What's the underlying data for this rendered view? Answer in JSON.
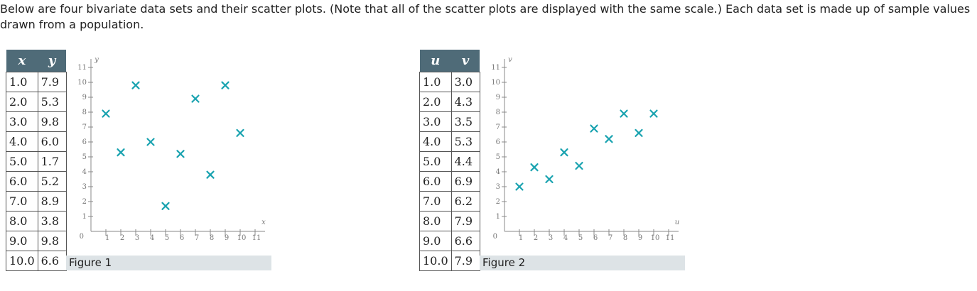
{
  "intro_text": "Below are four bivariate data sets and their scatter plots. (Note that all of the scatter plots are displayed with the same scale.) Each data set is made up of sample values drawn from a population.",
  "colors": {
    "header_bg": "#4f6b78",
    "marker": "#1aa3b0",
    "caption_bg": "#dde3e6"
  },
  "chart_data": [
    {
      "type": "scatter",
      "caption": "Figure 1",
      "xlabel": "x",
      "ylabel": "y",
      "xlim": [
        0,
        11
      ],
      "ylim": [
        0,
        11
      ],
      "xticks": [
        "1",
        "2",
        "3",
        "4",
        "5",
        "6",
        "7",
        "8",
        "9",
        "10",
        "11"
      ],
      "yticks": [
        "1",
        "2",
        "3",
        "4",
        "5",
        "6",
        "7",
        "8",
        "9",
        "10",
        "11"
      ],
      "origin_label": "0",
      "table_headers": [
        "x",
        "y"
      ],
      "x": [
        "1.0",
        "2.0",
        "3.0",
        "4.0",
        "5.0",
        "6.0",
        "7.0",
        "8.0",
        "9.0",
        "10.0"
      ],
      "y": [
        "7.9",
        "5.3",
        "9.8",
        "6.0",
        "1.7",
        "5.2",
        "8.9",
        "3.8",
        "9.8",
        "6.6"
      ]
    },
    {
      "type": "scatter",
      "caption": "Figure 2",
      "xlabel": "u",
      "ylabel": "v",
      "xlim": [
        0,
        11
      ],
      "ylim": [
        0,
        11
      ],
      "xticks": [
        "1",
        "2",
        "3",
        "4",
        "5",
        "6",
        "7",
        "8",
        "9",
        "10",
        "11"
      ],
      "yticks": [
        "1",
        "2",
        "3",
        "4",
        "5",
        "6",
        "7",
        "8",
        "9",
        "10",
        "11"
      ],
      "origin_label": "0",
      "table_headers": [
        "u",
        "v"
      ],
      "x": [
        "1.0",
        "2.0",
        "3.0",
        "4.0",
        "5.0",
        "6.0",
        "7.0",
        "8.0",
        "9.0",
        "10.0"
      ],
      "y": [
        "3.0",
        "4.3",
        "3.5",
        "5.3",
        "4.4",
        "6.9",
        "6.2",
        "7.9",
        "6.6",
        "7.9"
      ]
    }
  ]
}
